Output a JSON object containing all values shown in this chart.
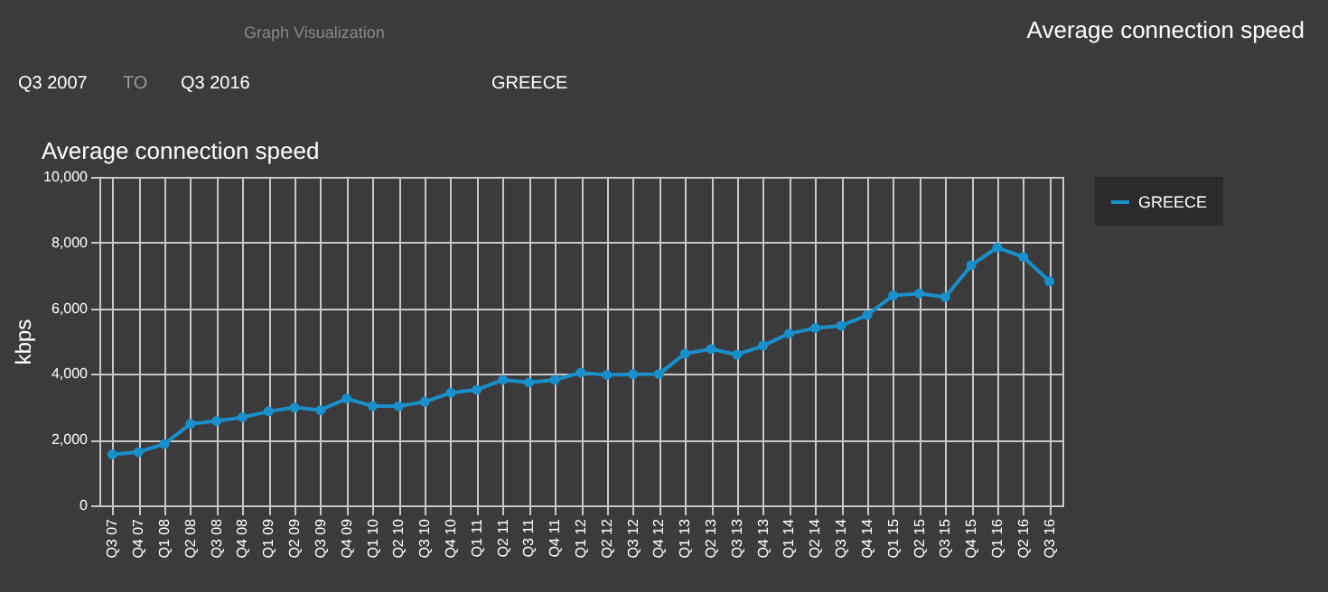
{
  "chart_data": {
    "type": "line",
    "title": "Average connection speed",
    "ylabel": "kbps",
    "categories": [
      "Q3 07",
      "Q4 07",
      "Q1 08",
      "Q2 08",
      "Q3 08",
      "Q4 08",
      "Q1 09",
      "Q2 09",
      "Q3 09",
      "Q4 09",
      "Q1 10",
      "Q2 10",
      "Q3 10",
      "Q4 10",
      "Q1 11",
      "Q2 11",
      "Q3 11",
      "Q4 11",
      "Q1 12",
      "Q2 12",
      "Q3 12",
      "Q4 12",
      "Q1 13",
      "Q2 13",
      "Q3 13",
      "Q4 13",
      "Q1 14",
      "Q2 14",
      "Q3 14",
      "Q4 14",
      "Q1 15",
      "Q2 15",
      "Q3 15",
      "Q4 15",
      "Q1 16",
      "Q2 16",
      "Q3 16"
    ],
    "series": [
      {
        "name": "GREECE",
        "color": "#1a8fc9",
        "values": [
          1550,
          1620,
          1870,
          2480,
          2570,
          2680,
          2860,
          2980,
          2900,
          3250,
          3020,
          3020,
          3150,
          3430,
          3520,
          3820,
          3740,
          3820,
          4040,
          3970,
          3990,
          4000,
          4620,
          4760,
          4590,
          4860,
          5230,
          5400,
          5470,
          5790,
          6390,
          6450,
          6340,
          7310,
          7850,
          7560,
          6820
        ]
      }
    ],
    "ylim": [
      0,
      10000
    ],
    "yticks": [
      0,
      {
        "value": 2000,
        "label": "2,000"
      },
      {
        "value": 4000,
        "label": "4,000"
      },
      {
        "value": 6000,
        "label": "6,000"
      },
      {
        "value": 8000,
        "label": "8,000"
      },
      {
        "value": 10000,
        "label": "10,000"
      }
    ],
    "grid": true,
    "legend": "right",
    "marker": "circle",
    "line_style": "solid",
    "annotations": [
      "Graph Visualization",
      "Average connection speed",
      "Q3 2007",
      "TO",
      "Q3 2016",
      "GREECE"
    ]
  }
}
